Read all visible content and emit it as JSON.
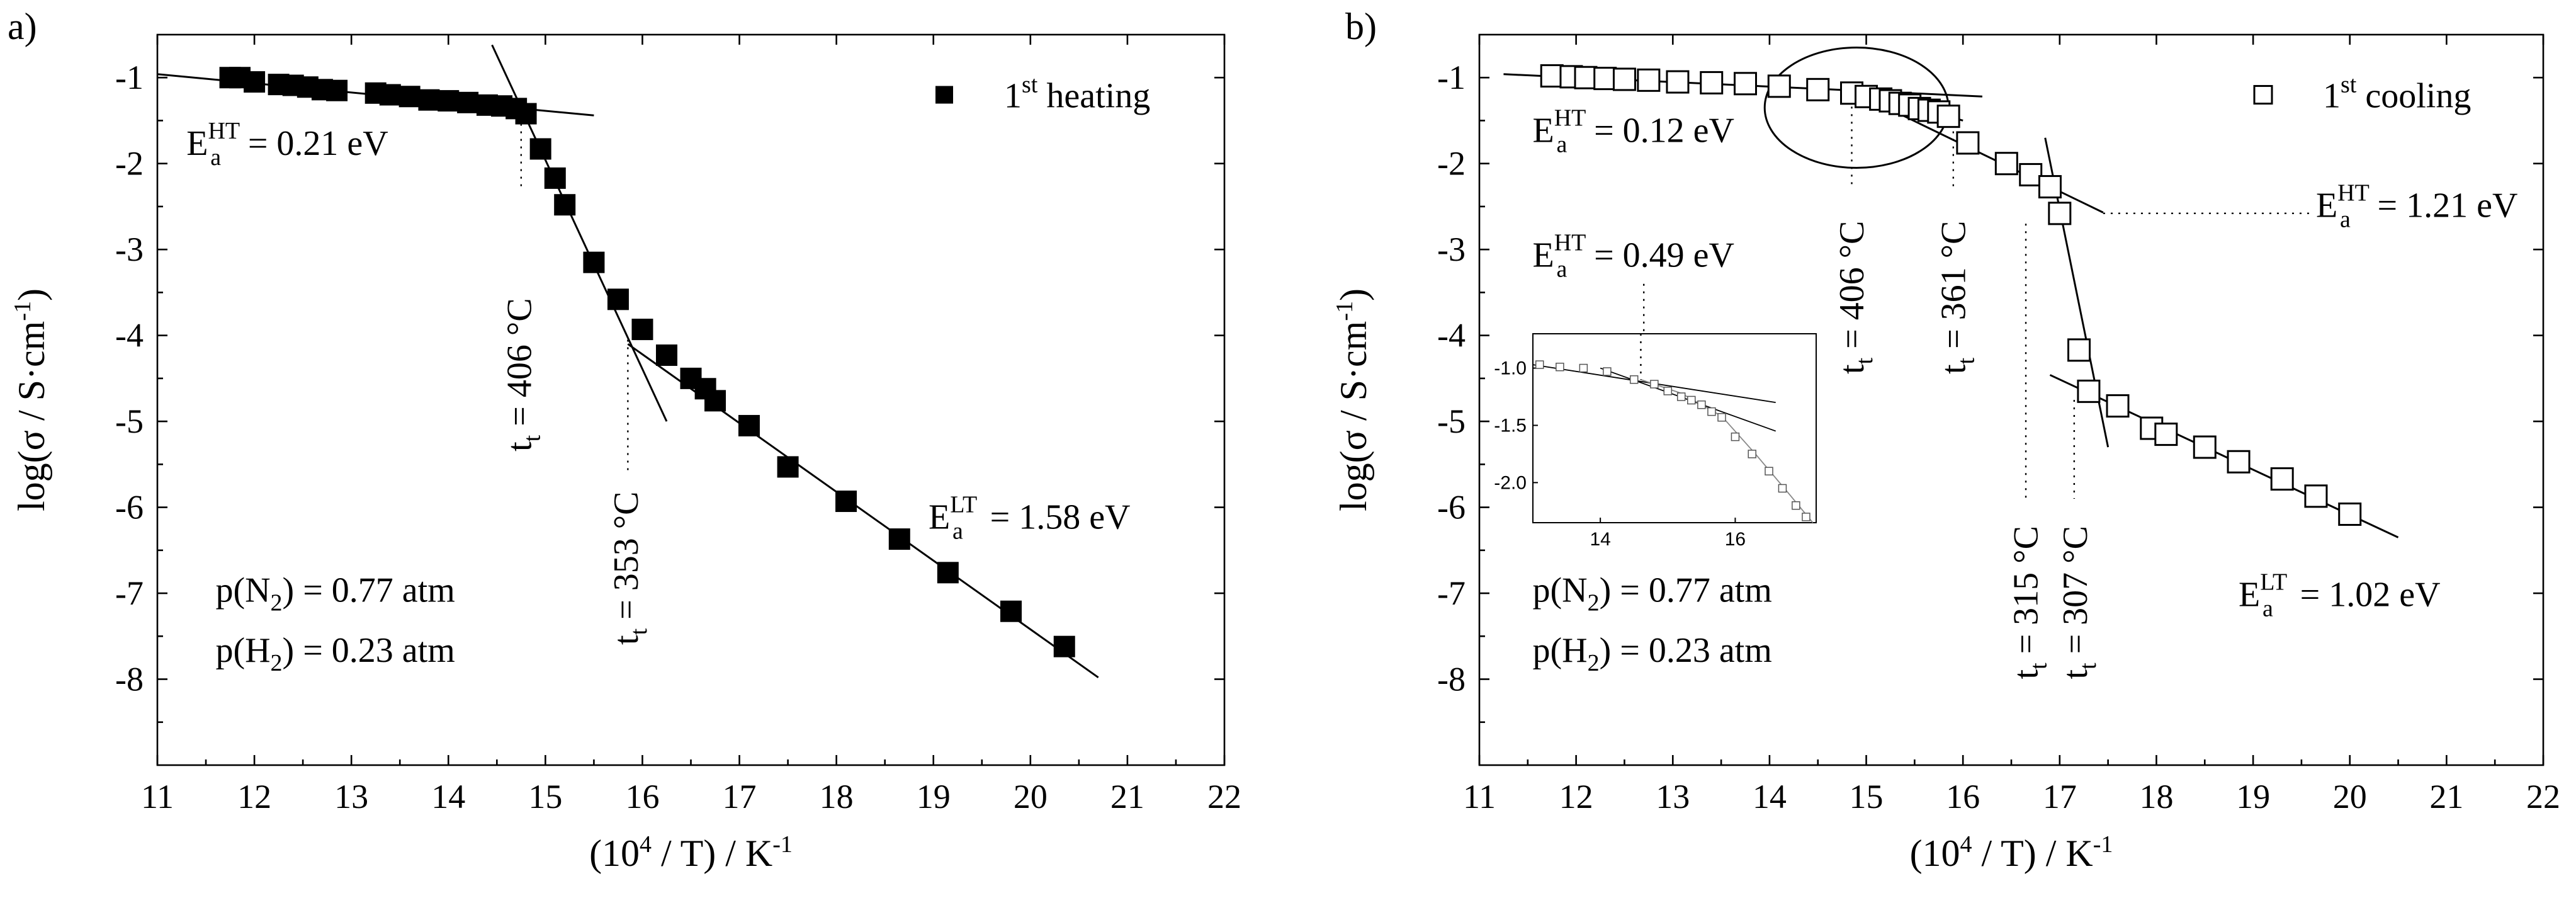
{
  "chart_data": [
    {
      "panel_label": "a)",
      "type": "scatter",
      "xlabel": "(10⁴ / T) / K⁻¹",
      "xlabel_parts": [
        "(10",
        "4",
        " / T) / K",
        "-1"
      ],
      "ylabel_parts": [
        "log(σ / S·cm",
        "-1",
        ")"
      ],
      "xlim": [
        11,
        22
      ],
      "ylim": [
        -9,
        -0.5
      ],
      "x_ticks": [
        11,
        12,
        13,
        14,
        15,
        16,
        17,
        18,
        19,
        20,
        21,
        22
      ],
      "y_ticks": [
        -1,
        -2,
        -3,
        -4,
        -5,
        -6,
        -7,
        -8
      ],
      "legend": {
        "marker": "filled-square",
        "text": "1",
        "sup": "st",
        "suffix": " heating"
      },
      "series": [
        {
          "name": "1st heating",
          "marker": "filled-square",
          "points": [
            [
              11.75,
              -1.0
            ],
            [
              11.85,
              -1.0
            ],
            [
              12.0,
              -1.05
            ],
            [
              12.25,
              -1.08
            ],
            [
              12.4,
              -1.09
            ],
            [
              12.55,
              -1.11
            ],
            [
              12.7,
              -1.14
            ],
            [
              12.85,
              -1.15
            ],
            [
              13.25,
              -1.18
            ],
            [
              13.4,
              -1.2
            ],
            [
              13.6,
              -1.22
            ],
            [
              13.8,
              -1.26
            ],
            [
              14.0,
              -1.27
            ],
            [
              14.2,
              -1.29
            ],
            [
              14.4,
              -1.32
            ],
            [
              14.55,
              -1.33
            ],
            [
              14.7,
              -1.36
            ],
            [
              14.8,
              -1.42
            ],
            [
              14.95,
              -1.83
            ],
            [
              15.1,
              -2.17
            ],
            [
              15.2,
              -2.48
            ],
            [
              15.5,
              -3.15
            ],
            [
              15.75,
              -3.58
            ],
            [
              16.0,
              -3.93
            ],
            [
              16.25,
              -4.23
            ],
            [
              16.5,
              -4.5
            ],
            [
              16.65,
              -4.62
            ],
            [
              16.75,
              -4.76
            ],
            [
              17.1,
              -5.05
            ],
            [
              17.5,
              -5.53
            ],
            [
              18.1,
              -5.93
            ],
            [
              18.65,
              -6.37
            ],
            [
              19.15,
              -6.76
            ],
            [
              19.8,
              -7.21
            ],
            [
              20.35,
              -7.62
            ]
          ]
        }
      ],
      "fit_lines": [
        {
          "from": [
            11.0,
            -0.96
          ],
          "to": [
            15.5,
            -1.44
          ]
        },
        {
          "from": [
            14.45,
            -0.62
          ],
          "to": [
            16.25,
            -5.0
          ]
        },
        {
          "from": [
            15.85,
            -4.1
          ],
          "to": [
            20.7,
            -7.98
          ]
        }
      ],
      "markers": [
        {
          "x": 14.75,
          "y_from": -1.45,
          "y_to": -2.3
        },
        {
          "x": 15.85,
          "y_from": -4.05,
          "y_to": -5.6
        }
      ],
      "annotations": [
        {
          "kind": "sub-sup",
          "base": "E",
          "sub": "a",
          "sup": "HT",
          "rest": " = 0.21 eV",
          "x": 11.3,
          "y": -1.9
        },
        {
          "kind": "sub-sup",
          "base": "E",
          "sub": "a",
          "sup": "LT",
          "rest": " = 1.58 eV",
          "x": 18.95,
          "y": -6.25
        },
        {
          "kind": "rotated",
          "main": "t",
          "sub": "t",
          "rest": " = 406 °C",
          "x": 14.85,
          "y": -5.35
        },
        {
          "kind": "rotated",
          "main": "t",
          "sub": "t",
          "rest": " = 353 °C",
          "x": 15.95,
          "y": -7.6
        },
        {
          "kind": "sub",
          "pre": "p(N",
          "sub": "2",
          "post": ") = 0.77 atm",
          "x": 11.6,
          "y": -7.1
        },
        {
          "kind": "sub",
          "pre": "p(H",
          "sub": "2",
          "post": ") = 0.23 atm",
          "x": 11.6,
          "y": -7.8
        }
      ]
    },
    {
      "panel_label": "b)",
      "type": "scatter",
      "xlabel": "(10⁴ / T) / K⁻¹",
      "xlabel_parts": [
        "(10",
        "4",
        " / T) / K",
        "-1"
      ],
      "ylabel_parts": [
        "log(σ / S·cm",
        "-1",
        ")"
      ],
      "xlim": [
        11,
        22
      ],
      "ylim": [
        -9,
        -0.5
      ],
      "x_ticks": [
        11,
        12,
        13,
        14,
        15,
        16,
        17,
        18,
        19,
        20,
        21,
        22
      ],
      "y_ticks": [
        -1,
        -2,
        -3,
        -4,
        -5,
        -6,
        -7,
        -8
      ],
      "legend": {
        "marker": "open-square",
        "text": "1",
        "sup": "st",
        "suffix": " cooling"
      },
      "series": [
        {
          "name": "1st cooling",
          "marker": "open-square",
          "points": [
            [
              11.75,
              -0.98
            ],
            [
              11.95,
              -0.99
            ],
            [
              12.1,
              -1.0
            ],
            [
              12.3,
              -1.01
            ],
            [
              12.5,
              -1.02
            ],
            [
              12.75,
              -1.03
            ],
            [
              13.05,
              -1.05
            ],
            [
              13.4,
              -1.06
            ],
            [
              13.75,
              -1.07
            ],
            [
              14.1,
              -1.1
            ],
            [
              14.5,
              -1.14
            ],
            [
              14.85,
              -1.18
            ],
            [
              15.0,
              -1.22
            ],
            [
              15.15,
              -1.25
            ],
            [
              15.25,
              -1.27
            ],
            [
              15.35,
              -1.3
            ],
            [
              15.45,
              -1.32
            ],
            [
              15.55,
              -1.36
            ],
            [
              15.65,
              -1.38
            ],
            [
              15.75,
              -1.4
            ],
            [
              15.85,
              -1.45
            ],
            [
              16.05,
              -1.76
            ],
            [
              16.45,
              -2.0
            ],
            [
              16.7,
              -2.13
            ],
            [
              16.9,
              -2.27
            ],
            [
              17.0,
              -2.58
            ],
            [
              17.2,
              -4.17
            ],
            [
              17.3,
              -4.65
            ],
            [
              17.6,
              -4.82
            ],
            [
              17.95,
              -5.08
            ],
            [
              18.1,
              -5.15
            ],
            [
              18.5,
              -5.3
            ],
            [
              18.85,
              -5.47
            ],
            [
              19.3,
              -5.67
            ],
            [
              19.65,
              -5.87
            ],
            [
              20.0,
              -6.08
            ]
          ]
        }
      ],
      "fit_lines": [
        {
          "from": [
            11.25,
            -0.96
          ],
          "to": [
            16.2,
            -1.22
          ]
        },
        {
          "from": [
            14.8,
            -1.12
          ],
          "to": [
            16.0,
            -1.5
          ]
        },
        {
          "from": [
            14.9,
            -1.18
          ],
          "to": [
            17.45,
            -2.57
          ]
        },
        {
          "from": [
            16.85,
            -1.7
          ],
          "to": [
            17.5,
            -5.3
          ]
        },
        {
          "from": [
            16.9,
            -4.46
          ],
          "to": [
            20.5,
            -6.35
          ]
        }
      ],
      "markers": [
        {
          "x": 14.85,
          "y_from": -1.25,
          "y_to": -2.3
        },
        {
          "x": 15.9,
          "y_from": -1.45,
          "y_to": -2.3
        },
        {
          "x": 16.65,
          "y_from": -2.7,
          "y_to": -5.9
        },
        {
          "x": 17.15,
          "y_from": -4.75,
          "y_to": -5.9
        },
        {
          "x": 12.7,
          "y_from": -3.4,
          "y_to": -4.55
        }
      ],
      "dotted_segments": [
        {
          "from": [
            17.45,
            -2.58
          ],
          "to": [
            19.6,
            -2.58
          ]
        }
      ],
      "ellipse": {
        "cx": 14.9,
        "cy": -1.35,
        "rx": 0.95,
        "ry": 0.7
      },
      "annotations": [
        {
          "kind": "sub-sup",
          "base": "E",
          "sub": "a",
          "sup": "HT",
          "rest": " = 0.12 eV",
          "x": 11.55,
          "y": -1.75
        },
        {
          "kind": "sub-sup",
          "base": "E",
          "sub": "a",
          "sup": "HT",
          "rest": " = 1.21 eV",
          "x": 19.65,
          "y": -2.62
        },
        {
          "kind": "sub-sup",
          "base": "E",
          "sub": "a",
          "sup": "HT",
          "rest": " = 0.49 eV",
          "x": 11.55,
          "y": -3.2
        },
        {
          "kind": "sub-sup",
          "base": "E",
          "sub": "a",
          "sup": "LT",
          "rest": " = 1.02 eV",
          "x": 18.85,
          "y": -7.15
        },
        {
          "kind": "rotated",
          "main": "t",
          "sub": "t",
          "rest": " = 406 °C",
          "x": 14.97,
          "y": -4.45
        },
        {
          "kind": "rotated",
          "main": "t",
          "sub": "t",
          "rest": " = 361 °C",
          "x": 16.02,
          "y": -4.45
        },
        {
          "kind": "rotated",
          "main": "t",
          "sub": "t",
          "rest": " = 315 °C",
          "x": 16.77,
          "y": -8.0
        },
        {
          "kind": "rotated",
          "main": "t",
          "sub": "t",
          "rest": " = 307 °C",
          "x": 17.28,
          "y": -8.0
        },
        {
          "kind": "sub",
          "pre": "p(N",
          "sub": "2",
          "post": ") = 0.77 atm",
          "x": 11.55,
          "y": -7.1
        },
        {
          "kind": "sub",
          "pre": "p(H",
          "sub": "2",
          "post": ") = 0.23 atm",
          "x": 11.55,
          "y": -7.8
        }
      ],
      "inset": {
        "xlim": [
          13.0,
          17.2
        ],
        "ylim": [
          -2.35,
          -0.7
        ],
        "x_ticks": [
          14,
          16
        ],
        "y_ticks": [
          -1.0,
          -1.5,
          -2.0
        ],
        "y_tick_labels": [
          "-1.0",
          "-1.5",
          "-2.0"
        ],
        "points": [
          [
            13.1,
            -0.97
          ],
          [
            13.4,
            -0.99
          ],
          [
            13.75,
            -1.0
          ],
          [
            14.1,
            -1.03
          ],
          [
            14.5,
            -1.1
          ],
          [
            14.8,
            -1.14
          ],
          [
            15.0,
            -1.2
          ],
          [
            15.2,
            -1.25
          ],
          [
            15.35,
            -1.28
          ],
          [
            15.5,
            -1.32
          ],
          [
            15.65,
            -1.38
          ],
          [
            15.8,
            -1.43
          ],
          [
            16.0,
            -1.6
          ],
          [
            16.25,
            -1.75
          ],
          [
            16.5,
            -1.9
          ],
          [
            16.7,
            -2.05
          ],
          [
            16.9,
            -2.2
          ],
          [
            17.05,
            -2.3
          ]
        ],
        "fit_lines": [
          {
            "from": [
              13.0,
              -0.97
            ],
            "to": [
              16.6,
              -1.3
            ]
          },
          {
            "from": [
              14.0,
              -1.0
            ],
            "to": [
              16.6,
              -1.55
            ]
          }
        ],
        "curve": [
          [
            14.6,
            -1.1
          ],
          [
            15.2,
            -1.22
          ],
          [
            15.8,
            -1.42
          ],
          [
            16.3,
            -1.75
          ],
          [
            16.8,
            -2.1
          ],
          [
            17.15,
            -2.35
          ]
        ],
        "dotted": {
          "x": 14.6,
          "y_from": -0.7,
          "y_to": -1.1
        }
      }
    }
  ]
}
